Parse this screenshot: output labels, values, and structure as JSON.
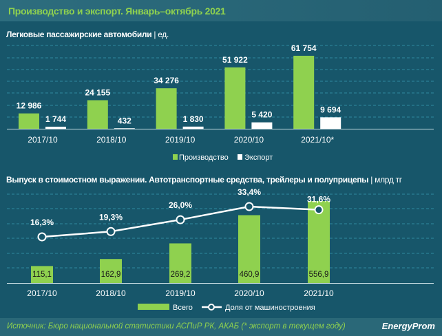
{
  "title": "Производство и экспорт. Январь–октябрь 2021",
  "source": "Источник: Бюро национальной статистики АСПиР РК, АКАБ (* экспорт в текущем году)",
  "logo": "EnergyProm",
  "colors": {
    "green": "#8fd14f",
    "white": "#ffffff",
    "background": "#17566a"
  },
  "chart_data": [
    {
      "type": "bar",
      "title": "Легковые пассажирские автомобили",
      "unit": "| ед.",
      "categories": [
        "2017/10",
        "2018/10",
        "2019/10",
        "2020/10",
        "2021/10*"
      ],
      "series": [
        {
          "name": "Производство",
          "values": [
            12986,
            24155,
            34276,
            51922,
            61754
          ],
          "labels": [
            "12 986",
            "24 155",
            "34 276",
            "51 922",
            "61 754"
          ],
          "color": "#8fd14f"
        },
        {
          "name": "Экспорт",
          "values": [
            1744,
            432,
            1830,
            5420,
            9694
          ],
          "labels": [
            "1 744",
            "432",
            "1 830",
            "5 420",
            "9 694"
          ],
          "color": "#ffffff"
        }
      ],
      "legend": "bottom",
      "grid": true
    },
    {
      "type": "bar+line",
      "title": "Выпуск в стоимостном выражении. Автотранспортные средства, трейлеры и полуприцепы",
      "unit": "| млрд тг",
      "categories": [
        "2017/10",
        "2018/10",
        "2019/10",
        "2020/10",
        "2021/10"
      ],
      "series": [
        {
          "name": "Всего",
          "values": [
            115.1,
            162.9,
            269.2,
            460.9,
            556.9
          ],
          "labels": [
            "115,1",
            "162,9",
            "269,2",
            "460,9",
            "556,9"
          ],
          "color": "#8fd14f"
        },
        {
          "name": "Доля от машиностроения",
          "values": [
            16.3,
            19.3,
            26.0,
            33.4,
            31.6
          ],
          "labels": [
            "16,3%",
            "19,3%",
            "26,0%",
            "33,4%",
            "31,6%"
          ],
          "color": "#ffffff"
        }
      ],
      "legend": "bottom",
      "grid": true
    }
  ]
}
